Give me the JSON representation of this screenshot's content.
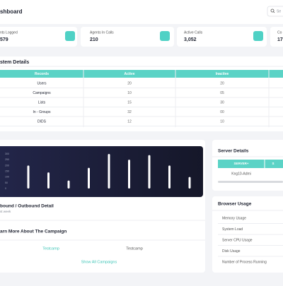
{
  "header": {
    "title": "shboard",
    "search_placeholder": "Se"
  },
  "stats": [
    {
      "label": "nts Logged",
      "value": "579"
    },
    {
      "label": "Agents In Calls",
      "value": "210"
    },
    {
      "label": "Active Calls",
      "value": "3,052"
    },
    {
      "label": "Co",
      "value": "17"
    }
  ],
  "system_details": {
    "title": "stem Details",
    "columns": [
      "Records",
      "Active",
      "Inactive"
    ],
    "rows": [
      [
        "Users",
        "20",
        "20"
      ],
      [
        "Campaigns",
        "10",
        "05"
      ],
      [
        "Lists",
        "15",
        "30"
      ],
      [
        "In - Groups",
        "32",
        "00"
      ],
      [
        "DIDS",
        "12",
        "10"
      ]
    ]
  },
  "traffic_chart": {
    "type": "bar",
    "ylim": [
      0,
      300
    ],
    "yticks": [
      0,
      50,
      100,
      150,
      200,
      250,
      300
    ],
    "values": [
      200,
      140,
      70,
      180,
      300,
      250,
      290,
      200,
      100
    ],
    "title": "bound / Outbound Detail",
    "subtitle": "st week"
  },
  "campaigns": {
    "title": "arn More About The Campaign",
    "items": [
      "Testcamp",
      "Testcamp"
    ],
    "link": "Show All Campaigns"
  },
  "server_details": {
    "title": "Server Details",
    "columns": [
      "SERVER+",
      "S"
    ],
    "rows": [
      [
        "Kng10-Admi"
      ]
    ]
  },
  "browser_usage": {
    "title": "Browser Usage",
    "items": [
      "Memory Usage",
      "System Load",
      "Server CPU Usage",
      "Disk Usage",
      "Number of Process Running"
    ]
  }
}
